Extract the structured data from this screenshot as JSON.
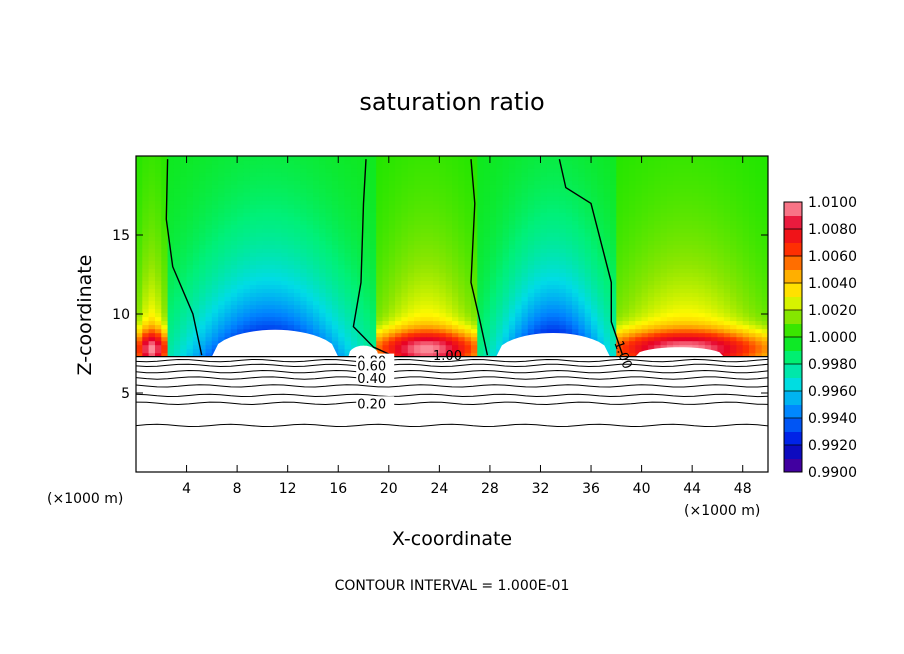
{
  "chart_data": {
    "type": "heatmap",
    "title": "saturation ratio",
    "xlabel": "X-coordinate",
    "ylabel": "Z-coordinate",
    "x_unit_label": "(×1000 m)",
    "contour_interval_label": "CONTOUR INTERVAL = 1.000E-01",
    "xlim": [
      0,
      50
    ],
    "ylim": [
      0,
      20
    ],
    "x_ticks": [
      4,
      8,
      12,
      16,
      20,
      24,
      28,
      32,
      36,
      40,
      44,
      48
    ],
    "y_ticks": [
      5,
      10,
      15
    ],
    "colorbar": {
      "min": 0.99,
      "max": 1.01,
      "labels": [
        "1.0100",
        "1.0080",
        "1.0060",
        "1.0040",
        "1.0020",
        "1.0000",
        "0.9980",
        "0.9960",
        "0.9940",
        "0.9920",
        "0.9900"
      ]
    },
    "cloud_base_z": 7.3,
    "contour_labels": [
      "1.00",
      "1.00",
      "0.80",
      "0.60",
      "0.40",
      "0.20"
    ],
    "contour_levels_below": [
      {
        "z": 7.05,
        "label": "0.80",
        "label_x": 17.5
      },
      {
        "z": 6.75,
        "label": "0.60",
        "label_x": 17.5
      },
      {
        "z": 6.35,
        "label": "",
        "label_x": null
      },
      {
        "z": 5.95,
        "label": "0.40",
        "label_x": 17.5
      },
      {
        "z": 5.45,
        "label": "",
        "label_x": null
      },
      {
        "z": 4.85,
        "label": "",
        "label_x": null
      },
      {
        "z": 4.35,
        "label": "0.20",
        "label_x": 17.5
      },
      {
        "z": 2.95,
        "label": "",
        "label_x": null
      }
    ],
    "unity_contours": [
      [
        [
          2.5,
          19.8
        ],
        [
          2.4,
          16
        ],
        [
          2.9,
          13
        ],
        [
          4.5,
          10
        ],
        [
          5.2,
          7.4
        ]
      ],
      [
        [
          18.2,
          19.8
        ],
        [
          18.0,
          17
        ],
        [
          17.8,
          12
        ],
        [
          17.2,
          9.2
        ],
        [
          18.8,
          7.9
        ],
        [
          20.2,
          7.4
        ]
      ],
      [
        [
          26.5,
          19.8
        ],
        [
          26.8,
          17
        ],
        [
          26.5,
          12
        ],
        [
          27.2,
          9.6
        ],
        [
          27.8,
          7.4
        ]
      ],
      [
        [
          33.5,
          19.8
        ],
        [
          34.0,
          18
        ],
        [
          36.0,
          17
        ],
        [
          37.6,
          12
        ],
        [
          37.6,
          9.5
        ],
        [
          38.5,
          7.4
        ]
      ]
    ],
    "unity_label_positions": [
      [
        23.5,
        7.4
      ],
      [
        38.2,
        8.3
      ]
    ],
    "domains": [
      {
        "x_range": [
          0,
          2.5
        ],
        "profile": "moist"
      },
      {
        "x_range": [
          2.5,
          19
        ],
        "profile": "dry",
        "center": 10.5
      },
      {
        "x_range": [
          19,
          27
        ],
        "profile": "moist",
        "center": 23
      },
      {
        "x_range": [
          27,
          38
        ],
        "profile": "dry",
        "center": 33
      },
      {
        "x_range": [
          38,
          50
        ],
        "profile": "moist",
        "center": 43.5
      }
    ]
  }
}
